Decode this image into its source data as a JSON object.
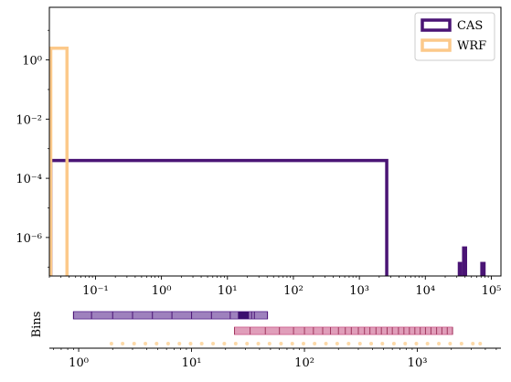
{
  "chart_data": [
    {
      "type": "histogram",
      "xscale": "log",
      "yscale": "log",
      "xlim": [
        0.02,
        140000
      ],
      "ylim": [
        5e-08,
        60
      ],
      "x_ticks": [
        {
          "value": 0.1,
          "label": "10⁻¹"
        },
        {
          "value": 1,
          "label": "10⁰"
        },
        {
          "value": 10,
          "label": "10¹"
        },
        {
          "value": 100,
          "label": "10²"
        },
        {
          "value": 1000,
          "label": "10³"
        },
        {
          "value": 10000,
          "label": "10⁴"
        },
        {
          "value": 100000,
          "label": "10⁵"
        }
      ],
      "y_ticks": [
        {
          "value": 1,
          "label": "10⁰"
        },
        {
          "value": 0.01,
          "label": "10⁻²"
        },
        {
          "value": 0.0001,
          "label": "10⁻⁴"
        },
        {
          "value": 1e-06,
          "label": "10⁻⁶"
        }
      ],
      "grid": false,
      "legend_position": "top-right",
      "series": [
        {
          "name": "CAS",
          "color": "#4a1475",
          "style": "step",
          "bins": [
            {
              "x0": 0.02,
              "x1": 2600,
              "y": 0.0004
            },
            {
              "x0": 31000,
              "x1": 36000,
              "y": 1.5e-07
            },
            {
              "x0": 36000,
              "x1": 43000,
              "y": 5e-07
            },
            {
              "x0": 68000,
              "x1": 82000,
              "y": 1.5e-07
            }
          ]
        },
        {
          "name": "WRF",
          "color": "#fcc98a",
          "style": "step",
          "bins": [
            {
              "x0": 0.02,
              "x1": 0.037,
              "y": 2.5
            }
          ]
        }
      ]
    },
    {
      "type": "bin-edges",
      "xscale": "log",
      "xlim": [
        0.55,
        5500
      ],
      "ylabel": "Bins",
      "x_ticks": [
        {
          "value": 1,
          "label": "10⁰"
        },
        {
          "value": 10,
          "label": "10¹"
        },
        {
          "value": 100,
          "label": "10²"
        },
        {
          "value": 1000,
          "label": "10³"
        }
      ],
      "rows": [
        {
          "color": "#6a3d9a",
          "opacity": 0.65,
          "range": [
            0.9,
            47
          ],
          "edges": [
            0.9,
            1.3,
            2.0,
            3.0,
            4.5,
            6.7,
            10,
            15,
            22,
            26,
            28,
            30,
            32,
            34,
            36,
            47
          ]
        },
        {
          "color": "#d06a95",
          "opacity": 0.65,
          "range": [
            24,
            2050
          ],
          "edges": [
            24,
            33,
            45,
            60,
            80,
            100,
            120,
            145,
            170,
            200,
            230,
            260,
            300,
            340,
            380,
            430,
            480,
            540,
            600,
            680,
            760,
            850,
            950,
            1060,
            1180,
            1320,
            1480,
            1650,
            1840,
            2050
          ]
        },
        {
          "color": "#fcd9a8",
          "opacity": 1,
          "style": "dots",
          "points": [
            1.95,
            2.45,
            3.1,
            3.9,
            4.9,
            6.2,
            7.8,
            9.8,
            12.3,
            15.5,
            19.5,
            24.6,
            31,
            39,
            49,
            62,
            78,
            98,
            123,
            155,
            195,
            246,
            310,
            390,
            490,
            620,
            780,
            980,
            1230,
            1550,
            1950,
            2460,
            3100,
            3600
          ]
        }
      ]
    }
  ]
}
